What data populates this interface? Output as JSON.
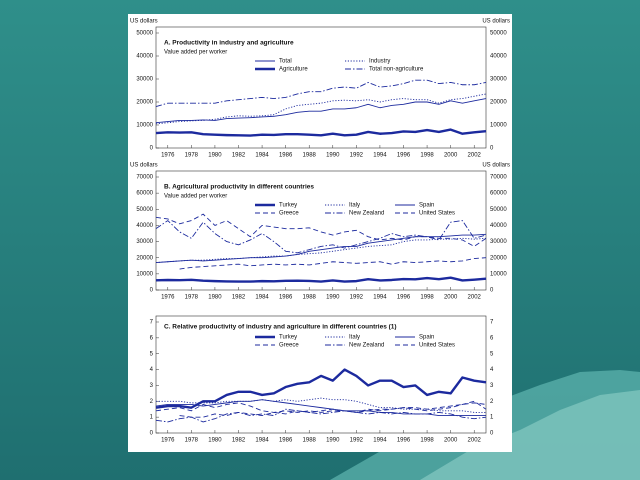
{
  "chart_data": [
    {
      "type": "line",
      "title": "A. Productivity in industry and agriculture",
      "subtitle": "Value added per worker",
      "unit_label": "US dollars",
      "x": [
        1975,
        1976,
        1977,
        1978,
        1979,
        1980,
        1981,
        1982,
        1983,
        1984,
        1985,
        1986,
        1987,
        1988,
        1989,
        1990,
        1991,
        1992,
        1993,
        1994,
        1995,
        1996,
        1997,
        1998,
        1999,
        2000,
        2001,
        2002,
        2003
      ],
      "xlim": [
        1975,
        2003
      ],
      "xticks": [
        1976,
        1978,
        1980,
        1982,
        1984,
        1986,
        1988,
        1990,
        1992,
        1994,
        1996,
        1998,
        2000,
        2002
      ],
      "ylim": [
        0,
        50000
      ],
      "yticks": [
        0,
        10000,
        20000,
        30000,
        40000,
        50000
      ],
      "series": [
        {
          "name": "Total",
          "color": "#1c2a9e",
          "style": "solid",
          "bold": false,
          "values": [
            11000,
            11500,
            12000,
            12000,
            12200,
            12000,
            12800,
            13000,
            13200,
            13500,
            13800,
            14500,
            15500,
            16000,
            16000,
            17000,
            17000,
            17500,
            19000,
            17500,
            18500,
            19000,
            20000,
            20000,
            19000,
            20500,
            19500,
            20500,
            21500
          ]
        },
        {
          "name": "Agriculture",
          "color": "#1c2a9e",
          "style": "solid",
          "bold": true,
          "values": [
            6500,
            6800,
            6700,
            6800,
            6000,
            5800,
            5600,
            5500,
            5400,
            5800,
            5700,
            6000,
            6000,
            5800,
            5500,
            6200,
            5500,
            5800,
            7000,
            6200,
            6500,
            7200,
            7000,
            7800,
            7000,
            8000,
            6200,
            6800,
            7300
          ]
        },
        {
          "name": "Industry",
          "color": "#1c2a9e",
          "style": "dotted",
          "bold": false,
          "values": [
            10500,
            11000,
            11500,
            11800,
            12000,
            12500,
            13500,
            14000,
            13800,
            14000,
            14500,
            17000,
            18500,
            19000,
            19500,
            20500,
            20800,
            20500,
            21000,
            20000,
            21000,
            21500,
            21000,
            21000,
            19500,
            21000,
            21500,
            22500,
            23500
          ]
        },
        {
          "name": "Total non-agriculture",
          "color": "#1c2a9e",
          "style": "dashdot",
          "bold": false,
          "values": [
            18000,
            19500,
            19500,
            19500,
            19500,
            19500,
            20500,
            21000,
            21500,
            22000,
            21500,
            22000,
            23500,
            24500,
            24500,
            26000,
            26500,
            26000,
            28500,
            26500,
            27000,
            28000,
            29500,
            29500,
            28000,
            28500,
            27500,
            27500,
            28500
          ]
        }
      ]
    },
    {
      "type": "line",
      "title": "B. Agricultural productivity in different countries",
      "subtitle": "Value added per worker",
      "unit_label": "US dollars",
      "x": [
        1975,
        1976,
        1977,
        1978,
        1979,
        1980,
        1981,
        1982,
        1983,
        1984,
        1985,
        1986,
        1987,
        1988,
        1989,
        1990,
        1991,
        1992,
        1993,
        1994,
        1995,
        1996,
        1997,
        1998,
        1999,
        2000,
        2001,
        2002,
        2003
      ],
      "xlim": [
        1975,
        2003
      ],
      "xticks": [
        1976,
        1978,
        1980,
        1982,
        1984,
        1986,
        1988,
        1990,
        1992,
        1994,
        1996,
        1998,
        2000,
        2002
      ],
      "ylim": [
        0,
        70000
      ],
      "yticks": [
        0,
        10000,
        20000,
        30000,
        40000,
        50000,
        60000,
        70000
      ],
      "series": [
        {
          "name": "Turkey",
          "color": "#1c2a9e",
          "style": "solid",
          "bold": true,
          "values": [
            6000,
            6200,
            6100,
            6300,
            5800,
            5500,
            5300,
            5200,
            5200,
            5500,
            5400,
            5700,
            5800,
            5600,
            5200,
            5900,
            5200,
            5500,
            6700,
            5900,
            6200,
            6800,
            6600,
            7400,
            6700,
            7600,
            5900,
            6400,
            7000
          ]
        },
        {
          "name": "Greece",
          "color": "#1c2a9e",
          "style": "dashed",
          "bold": false,
          "values": [
            null,
            null,
            13000,
            14000,
            14500,
            15000,
            15500,
            16000,
            15000,
            15500,
            16000,
            15500,
            16000,
            15500,
            16500,
            17500,
            17000,
            16500,
            17000,
            17500,
            16000,
            17500,
            17000,
            17500,
            18000,
            17500,
            18000,
            19500,
            20000
          ]
        },
        {
          "name": "Italy",
          "color": "#1c2a9e",
          "style": "dotted",
          "bold": false,
          "values": [
            17000,
            17500,
            18000,
            18500,
            18500,
            19000,
            19500,
            19500,
            20000,
            20500,
            21000,
            21000,
            22000,
            22500,
            23000,
            24000,
            25000,
            26000,
            27000,
            27500,
            28000,
            30000,
            31000,
            31000,
            31500,
            31500,
            32000,
            31500,
            32000
          ]
        },
        {
          "name": "New Zealand",
          "color": "#1c2a9e",
          "style": "dashdot",
          "bold": false,
          "values": [
            38000,
            43000,
            36000,
            32000,
            42000,
            35000,
            30000,
            28000,
            31000,
            35000,
            30000,
            24000,
            23000,
            25000,
            27000,
            28000,
            26000,
            28000,
            30000,
            32000,
            35000,
            33000,
            34000,
            33000,
            31000,
            42000,
            43000,
            32000,
            34000
          ]
        },
        {
          "name": "Spain",
          "color": "#1c2a9e",
          "style": "solid",
          "bold": false,
          "values": [
            17000,
            17500,
            18000,
            18500,
            18000,
            18500,
            19000,
            19500,
            20000,
            20000,
            20500,
            21000,
            22000,
            24000,
            25000,
            26000,
            27000,
            27000,
            29000,
            30000,
            31000,
            32000,
            33000,
            33000,
            33000,
            33500,
            34000,
            34000,
            34500
          ]
        },
        {
          "name": "United States",
          "color": "#1c2a9e",
          "style": "dashed",
          "bold": false,
          "values": [
            45000,
            44000,
            41000,
            43000,
            47000,
            40000,
            43000,
            38000,
            33000,
            40000,
            39000,
            38000,
            38000,
            38500,
            36000,
            34000,
            36000,
            37000,
            33000,
            31000,
            32000,
            31000,
            33000,
            33000,
            32000,
            32000,
            31000,
            27000,
            32000
          ]
        }
      ]
    },
    {
      "type": "line",
      "title": "C. Relative productivity of industry and agriculture in different countries (1)",
      "x": [
        1975,
        1976,
        1977,
        1978,
        1979,
        1980,
        1981,
        1982,
        1983,
        1984,
        1985,
        1986,
        1987,
        1988,
        1989,
        1990,
        1991,
        1992,
        1993,
        1994,
        1995,
        1996,
        1997,
        1998,
        1999,
        2000,
        2001,
        2002,
        2003
      ],
      "xlim": [
        1975,
        2003
      ],
      "xticks": [
        1976,
        1978,
        1980,
        1982,
        1984,
        1986,
        1988,
        1990,
        1992,
        1994,
        1996,
        1998,
        2000,
        2002
      ],
      "ylim": [
        0,
        7
      ],
      "yticks": [
        0,
        1,
        2,
        3,
        4,
        5,
        6,
        7
      ],
      "series": [
        {
          "name": "Turkey",
          "color": "#1c2a9e",
          "style": "solid",
          "bold": true,
          "values": [
            1.6,
            1.7,
            1.7,
            1.6,
            2.0,
            2.0,
            2.4,
            2.6,
            2.6,
            2.4,
            2.5,
            2.9,
            3.1,
            3.2,
            3.6,
            3.3,
            4.0,
            3.6,
            3.0,
            3.3,
            3.3,
            2.9,
            3.0,
            2.4,
            2.6,
            2.5,
            3.5,
            3.3,
            3.2
          ]
        },
        {
          "name": "Greece",
          "color": "#1c2a9e",
          "style": "dashed",
          "bold": false,
          "values": [
            null,
            null,
            1.1,
            1.0,
            1.0,
            1.2,
            1.1,
            1.3,
            1.2,
            1.1,
            1.3,
            1.2,
            1.4,
            1.3,
            1.4,
            1.5,
            1.4,
            1.3,
            1.5,
            1.4,
            1.5,
            1.6,
            1.6,
            1.5,
            1.6,
            1.7,
            1.8,
            1.9,
            1.8
          ]
        },
        {
          "name": "Italy",
          "color": "#1c2a9e",
          "style": "dotted",
          "bold": false,
          "values": [
            2.0,
            2.0,
            2.0,
            1.9,
            1.9,
            1.9,
            2.0,
            2.0,
            2.0,
            2.1,
            2.0,
            2.1,
            2.0,
            2.1,
            2.2,
            2.1,
            2.1,
            2.0,
            1.8,
            1.6,
            1.6,
            1.5,
            1.5,
            1.5,
            1.4,
            1.4,
            1.4,
            1.3,
            1.3
          ]
        },
        {
          "name": "New Zealand",
          "color": "#1c2a9e",
          "style": "dashdot",
          "bold": false,
          "values": [
            0.8,
            0.7,
            0.9,
            1.0,
            0.7,
            0.9,
            1.2,
            1.3,
            1.1,
            1.2,
            1.1,
            1.5,
            1.4,
            1.3,
            1.2,
            1.3,
            1.4,
            1.3,
            1.2,
            1.3,
            1.2,
            1.3,
            1.2,
            1.2,
            1.3,
            1.2,
            1.0,
            0.9,
            1.0
          ]
        },
        {
          "name": "Spain",
          "color": "#1c2a9e",
          "style": "solid",
          "bold": false,
          "values": [
            1.7,
            1.8,
            1.8,
            1.8,
            1.7,
            1.8,
            1.9,
            2.0,
            2.0,
            2.1,
            2.0,
            1.9,
            1.8,
            1.7,
            1.6,
            1.5,
            1.4,
            1.4,
            1.4,
            1.3,
            1.3,
            1.2,
            1.2,
            1.2,
            1.1,
            1.1,
            1.1,
            1.1,
            1.1
          ]
        },
        {
          "name": "United States",
          "color": "#1c2a9e",
          "style": "dashed",
          "bold": false,
          "values": [
            1.4,
            1.5,
            1.6,
            1.4,
            1.8,
            1.6,
            1.8,
            1.9,
            1.7,
            1.4,
            1.3,
            1.4,
            1.3,
            1.4,
            1.3,
            1.4,
            1.4,
            1.3,
            1.4,
            1.5,
            1.5,
            1.6,
            1.5,
            1.4,
            1.5,
            1.6,
            1.8,
            2.0,
            1.5
          ]
        }
      ]
    }
  ]
}
